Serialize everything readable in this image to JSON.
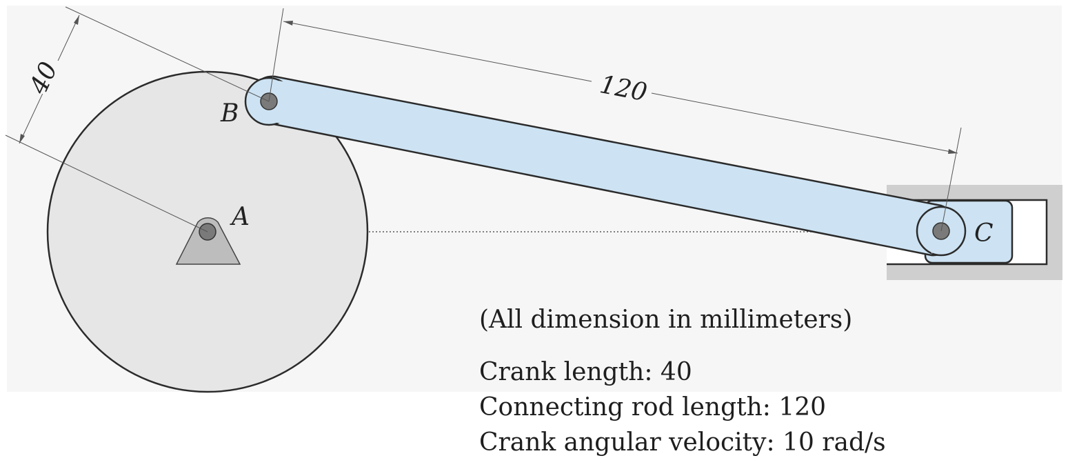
{
  "diagram": {
    "points": {
      "a": "A",
      "b": "B",
      "c": "C"
    },
    "dimensions": {
      "crank": "40",
      "rod": "120"
    }
  },
  "info": {
    "units_note": "(All dimension in millimeters)",
    "crank_length": "Crank length: 40",
    "rod_length": "Connecting rod length: 120",
    "angular_velocity": "Crank angular velocity: 10 rad/s"
  },
  "colors": {
    "background_panel": "#f6f6f6",
    "disk": "#e6e6e6",
    "link": "#cde3f3",
    "slider_guide": "#cfcfcf",
    "pin": "#7a7a7a",
    "outline": "#2b2b2b"
  }
}
